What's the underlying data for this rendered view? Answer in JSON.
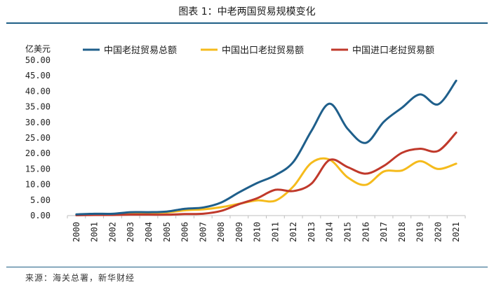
{
  "header": {
    "title": "图表 1：中老两国贸易规模变化"
  },
  "source": "来源：海关总署，新华财经",
  "chart_data": {
    "type": "line",
    "ylabel": "亿美元",
    "ylim": [
      0,
      50
    ],
    "y_ticks": [
      "0.00",
      "5.00",
      "10.00",
      "15.00",
      "20.00",
      "25.00",
      "30.00",
      "35.00",
      "40.00",
      "45.00",
      "50.00"
    ],
    "x": [
      "2000",
      "2001",
      "2002",
      "2003",
      "2004",
      "2005",
      "2006",
      "2007",
      "2008",
      "2009",
      "2010",
      "2011",
      "2012",
      "2013",
      "2014",
      "2015",
      "2016",
      "2017",
      "2018",
      "2019",
      "2020",
      "2021"
    ],
    "grid": false,
    "legend_position": "top",
    "series": [
      {
        "name": "中国老挝贸易总额",
        "color": "#1f5f8b",
        "values": [
          0.4,
          0.6,
          0.6,
          1.1,
          1.1,
          1.3,
          2.2,
          2.6,
          4.2,
          7.5,
          10.5,
          13.0,
          17.3,
          27.3,
          36.0,
          27.9,
          23.4,
          30.2,
          34.7,
          39.0,
          35.8,
          43.4
        ]
      },
      {
        "name": "中国出口老挝贸易额",
        "color": "#f5bb1c",
        "values": [
          0.3,
          0.4,
          0.5,
          0.8,
          0.9,
          1.0,
          1.7,
          2.0,
          2.7,
          3.8,
          4.9,
          4.8,
          9.4,
          17.0,
          18.0,
          12.3,
          9.9,
          14.2,
          14.5,
          17.5,
          15.0,
          16.7
        ]
      },
      {
        "name": "中国进口老挝贸易额",
        "color": "#c0392b",
        "values": [
          0.1,
          0.2,
          0.2,
          0.3,
          0.3,
          0.3,
          0.5,
          0.6,
          1.5,
          3.7,
          5.6,
          8.3,
          7.9,
          10.3,
          17.9,
          15.6,
          13.5,
          16.0,
          20.2,
          21.5,
          20.8,
          26.7
        ]
      }
    ]
  }
}
